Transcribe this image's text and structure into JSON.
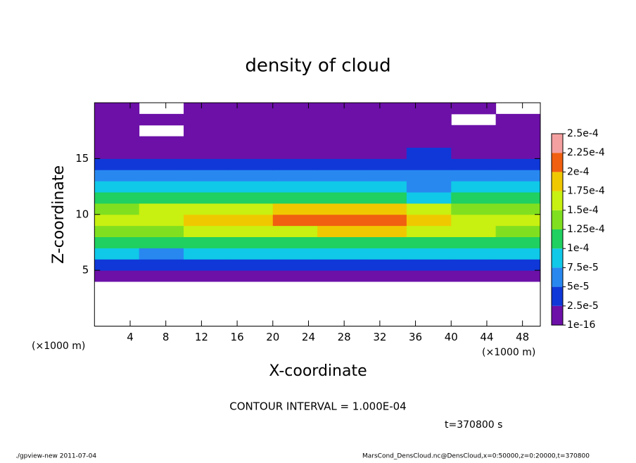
{
  "chart_data": {
    "type": "contour",
    "title": "density of cloud",
    "x_label": "X-coordinate",
    "y_label": "Z-coordinate",
    "x_unit": "(×1000 m)",
    "contour_interval": "CONTOUR INTERVAL = 1.000E-04",
    "time": "t=370800 s",
    "footer_left": "./gpview-new  2011-07-04",
    "footer_right": "MarsCond_DensCloud.nc@DensCloud,x=0:50000,z=0:20000,t=370800",
    "xlim": [
      0,
      50
    ],
    "ylim": [
      0,
      20
    ],
    "xticks": [
      4,
      8,
      12,
      16,
      20,
      24,
      28,
      32,
      36,
      40,
      44,
      48
    ],
    "yticks": [
      5,
      10,
      15
    ],
    "x": [
      2.5,
      7.5,
      12.5,
      17.5,
      22.5,
      27.5,
      32.5,
      37.5,
      42.5,
      47.5
    ],
    "y": [
      0.5,
      1.5,
      2.5,
      3.5,
      4.5,
      5.5,
      6.5,
      7.5,
      8.5,
      9.5,
      10.5,
      11.5,
      12.5,
      13.5,
      14.5,
      15.5,
      16.5,
      17.5,
      18.5,
      19.5
    ],
    "values": [
      [
        null,
        null,
        null,
        null,
        null,
        null,
        null,
        null,
        null,
        null
      ],
      [
        null,
        null,
        null,
        null,
        null,
        null,
        null,
        null,
        null,
        null
      ],
      [
        null,
        null,
        null,
        null,
        null,
        null,
        null,
        null,
        null,
        null
      ],
      [
        null,
        null,
        null,
        null,
        null,
        null,
        null,
        null,
        null,
        null
      ],
      [
        1e-05,
        1e-05,
        1e-05,
        1e-05,
        1e-05,
        1e-05,
        1e-05,
        1e-05,
        1e-05,
        1e-05
      ],
      [
        3.5e-05,
        3e-05,
        3.5e-05,
        3.5e-05,
        3.5e-05,
        3.5e-05,
        3.5e-05,
        3.5e-05,
        3.5e-05,
        3.5e-05
      ],
      [
        8e-05,
        6e-05,
        8e-05,
        8e-05,
        8e-05,
        8e-05,
        8e-05,
        8e-05,
        8e-05,
        8e-05
      ],
      [
        0.00011,
        0.000105,
        0.00011,
        0.000115,
        0.00012,
        0.00012,
        0.00012,
        0.000115,
        0.00011,
        0.00011
      ],
      [
        0.00013,
        0.00014,
        0.00015,
        0.00016,
        0.00017,
        0.00018,
        0.00018,
        0.00017,
        0.00015,
        0.00014
      ],
      [
        0.00015,
        0.00016,
        0.00018,
        0.00019,
        0.0002,
        0.00021,
        0.00021,
        0.00018,
        0.00016,
        0.00016
      ],
      [
        0.00014,
        0.00015,
        0.00016,
        0.00017,
        0.00018,
        0.00019,
        0.00019,
        0.00016,
        0.00014,
        0.00014
      ],
      [
        0.00011,
        0.00012,
        0.00012,
        0.00011,
        0.00011,
        0.00011,
        0.0001,
        9e-05,
        0.0001,
        0.0001
      ],
      [
        8e-05,
        8e-05,
        8e-05,
        8e-05,
        8e-05,
        8e-05,
        8e-05,
        7e-05,
        8e-05,
        8e-05
      ],
      [
        5e-05,
        5e-05,
        5e-05,
        5e-05,
        5e-05,
        5e-05,
        5e-05,
        6e-05,
        5e-05,
        5e-05
      ],
      [
        3.5e-05,
        3.5e-05,
        3.5e-05,
        3.5e-05,
        3.5e-05,
        3.5e-05,
        3.5e-05,
        4e-05,
        3.5e-05,
        3.5e-05
      ],
      [
        2e-05,
        2e-05,
        2e-05,
        2e-05,
        2e-05,
        2e-05,
        2e-05,
        3e-05,
        2e-05,
        2e-05
      ],
      [
        1e-05,
        1e-05,
        1e-05,
        1e-05,
        1e-05,
        1e-05,
        1e-05,
        1e-05,
        1e-05,
        1e-05
      ],
      [
        5e-06,
        null,
        5e-06,
        5e-06,
        5e-06,
        5e-06,
        5e-06,
        5e-06,
        5e-06,
        5e-06
      ],
      [
        5e-06,
        5e-06,
        5e-06,
        5e-06,
        5e-06,
        5e-06,
        5e-06,
        5e-06,
        null,
        5e-06
      ],
      [
        5e-06,
        null,
        5e-06,
        5e-06,
        5e-06,
        5e-06,
        5e-06,
        5e-06,
        5e-06,
        null
      ]
    ],
    "colorbar": {
      "ticks": [
        {
          "value": 1e-16,
          "label": "1e-16"
        },
        {
          "value": 2.5e-05,
          "label": "2.5e-5"
        },
        {
          "value": 5e-05,
          "label": "5e-5"
        },
        {
          "value": 7.5e-05,
          "label": "7.5e-5"
        },
        {
          "value": 0.0001,
          "label": "1e-4"
        },
        {
          "value": 0.000125,
          "label": "1.25e-4"
        },
        {
          "value": 0.00015,
          "label": "1.5e-4"
        },
        {
          "value": 0.000175,
          "label": "1.75e-4"
        },
        {
          "value": 0.0002,
          "label": "2e-4"
        },
        {
          "value": 0.000225,
          "label": "2.25e-4"
        },
        {
          "value": 0.00025,
          "label": "2.5e-4"
        }
      ],
      "colors": [
        "#6c10a8",
        "#1038d8",
        "#2888f0",
        "#10c8e8",
        "#20d060",
        "#80e020",
        "#c8f010",
        "#f0c800",
        "#f06010",
        "#f4a0a0"
      ]
    }
  }
}
